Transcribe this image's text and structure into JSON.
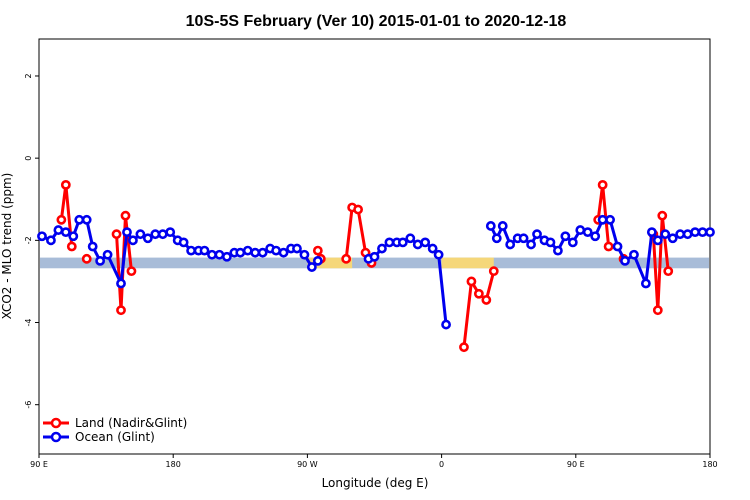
{
  "chart_data": {
    "type": "line",
    "title": "10S-5S February (Ver 10)   2015-01-01 to 2020-12-18",
    "xlabel": "Longitude (deg E)",
    "ylabel": "XCO2 - MLO trend (ppm)",
    "xlim": [
      90,
      540
    ],
    "ylim": [
      -7.2,
      2.9
    ],
    "x_ticks": [
      {
        "value": 90,
        "label": "90 E"
      },
      {
        "value": 180,
        "label": "180"
      },
      {
        "value": 270,
        "label": "90 W"
      },
      {
        "value": 360,
        "label": "0"
      },
      {
        "value": 450,
        "label": "90 E"
      },
      {
        "value": 540,
        "label": "180"
      }
    ],
    "y_ticks": [
      {
        "value": 2,
        "label": "2"
      },
      {
        "value": 0,
        "label": "0"
      },
      {
        "value": -2,
        "label": "-2"
      },
      {
        "value": -4,
        "label": "-4"
      },
      {
        "value": -6,
        "label": "-6"
      }
    ],
    "grid": false,
    "legend_position": "bottom-left",
    "map_strip": {
      "y_top": -2.42,
      "y_bottom": -2.68,
      "ocean_color": "#a8bcd8",
      "land_color": "#f5d77a"
    },
    "series": [
      {
        "name": "Land (Nadir&Glint)",
        "color": "#ff0000",
        "segments": [
          [
            [
              105,
              -1.5
            ],
            [
              108,
              -0.65
            ],
            [
              112,
              -2.15
            ]
          ],
          [
            [
              122,
              -2.45
            ]
          ],
          [
            [
              142,
              -1.85
            ],
            [
              145,
              -3.7
            ],
            [
              148,
              -1.4
            ],
            [
              152,
              -2.75
            ]
          ],
          [
            [
              277,
              -2.25
            ],
            [
              279,
              -2.45
            ]
          ],
          [
            [
              296,
              -2.45
            ],
            [
              300,
              -1.2
            ],
            [
              304,
              -1.25
            ],
            [
              309,
              -2.3
            ],
            [
              313,
              -2.55
            ]
          ],
          [
            [
              375,
              -4.6
            ],
            [
              380,
              -3.0
            ],
            [
              385,
              -3.3
            ],
            [
              390,
              -3.45
            ],
            [
              395,
              -2.75
            ]
          ],
          [
            [
              465,
              -1.5
            ],
            [
              468,
              -0.65
            ],
            [
              472,
              -2.15
            ]
          ],
          [
            [
              482,
              -2.45
            ]
          ],
          [
            [
              502,
              -1.85
            ],
            [
              505,
              -3.7
            ],
            [
              508,
              -1.4
            ],
            [
              512,
              -2.75
            ]
          ]
        ]
      },
      {
        "name": "Ocean (Glint)",
        "color": "#0000ee",
        "segments": [
          [
            [
              92,
              -1.9
            ],
            [
              98,
              -2.0
            ],
            [
              103,
              -1.75
            ],
            [
              108,
              -1.8
            ],
            [
              113,
              -1.9
            ],
            [
              117,
              -1.5
            ],
            [
              122,
              -1.5
            ],
            [
              126,
              -2.15
            ],
            [
              131,
              -2.5
            ],
            [
              136,
              -2.35
            ],
            [
              145,
              -3.05
            ],
            [
              149,
              -1.8
            ],
            [
              153,
              -2.0
            ],
            [
              158,
              -1.85
            ],
            [
              163,
              -1.95
            ],
            [
              168,
              -1.85
            ],
            [
              173,
              -1.85
            ],
            [
              178,
              -1.8
            ],
            [
              183,
              -2.0
            ],
            [
              187,
              -2.05
            ],
            [
              192,
              -2.25
            ],
            [
              197,
              -2.25
            ],
            [
              201,
              -2.25
            ],
            [
              206,
              -2.35
            ],
            [
              211,
              -2.35
            ],
            [
              216,
              -2.4
            ],
            [
              221,
              -2.3
            ],
            [
              225,
              -2.3
            ],
            [
              230,
              -2.25
            ],
            [
              235,
              -2.3
            ],
            [
              240,
              -2.3
            ],
            [
              245,
              -2.2
            ],
            [
              249,
              -2.25
            ],
            [
              254,
              -2.3
            ],
            [
              259,
              -2.2
            ],
            [
              263,
              -2.2
            ],
            [
              268,
              -2.35
            ],
            [
              273,
              -2.65
            ],
            [
              277,
              -2.5
            ]
          ],
          [
            [
              311,
              -2.45
            ],
            [
              315,
              -2.4
            ],
            [
              320,
              -2.2
            ],
            [
              325,
              -2.05
            ],
            [
              330,
              -2.05
            ],
            [
              334,
              -2.05
            ],
            [
              339,
              -1.95
            ],
            [
              344,
              -2.1
            ],
            [
              349,
              -2.05
            ],
            [
              354,
              -2.2
            ],
            [
              358,
              -2.35
            ],
            [
              363,
              -4.05
            ]
          ],
          [
            [
              393,
              -1.65
            ],
            [
              397,
              -1.95
            ],
            [
              401,
              -1.65
            ],
            [
              406,
              -2.1
            ],
            [
              411,
              -1.95
            ],
            [
              415,
              -1.95
            ],
            [
              420,
              -2.1
            ],
            [
              424,
              -1.85
            ],
            [
              429,
              -2.0
            ],
            [
              433,
              -2.05
            ],
            [
              438,
              -2.25
            ],
            [
              443,
              -1.9
            ],
            [
              448,
              -2.05
            ],
            [
              453,
              -1.75
            ],
            [
              458,
              -1.8
            ],
            [
              463,
              -1.9
            ],
            [
              468,
              -1.5
            ],
            [
              473,
              -1.5
            ],
            [
              478,
              -2.15
            ],
            [
              483,
              -2.5
            ],
            [
              489,
              -2.35
            ],
            [
              497,
              -3.05
            ],
            [
              501,
              -1.8
            ],
            [
              505,
              -2.0
            ],
            [
              510,
              -1.85
            ],
            [
              515,
              -1.95
            ],
            [
              520,
              -1.85
            ],
            [
              525,
              -1.85
            ],
            [
              530,
              -1.8
            ],
            [
              535,
              -1.8
            ],
            [
              540,
              -1.8
            ]
          ]
        ]
      }
    ]
  }
}
